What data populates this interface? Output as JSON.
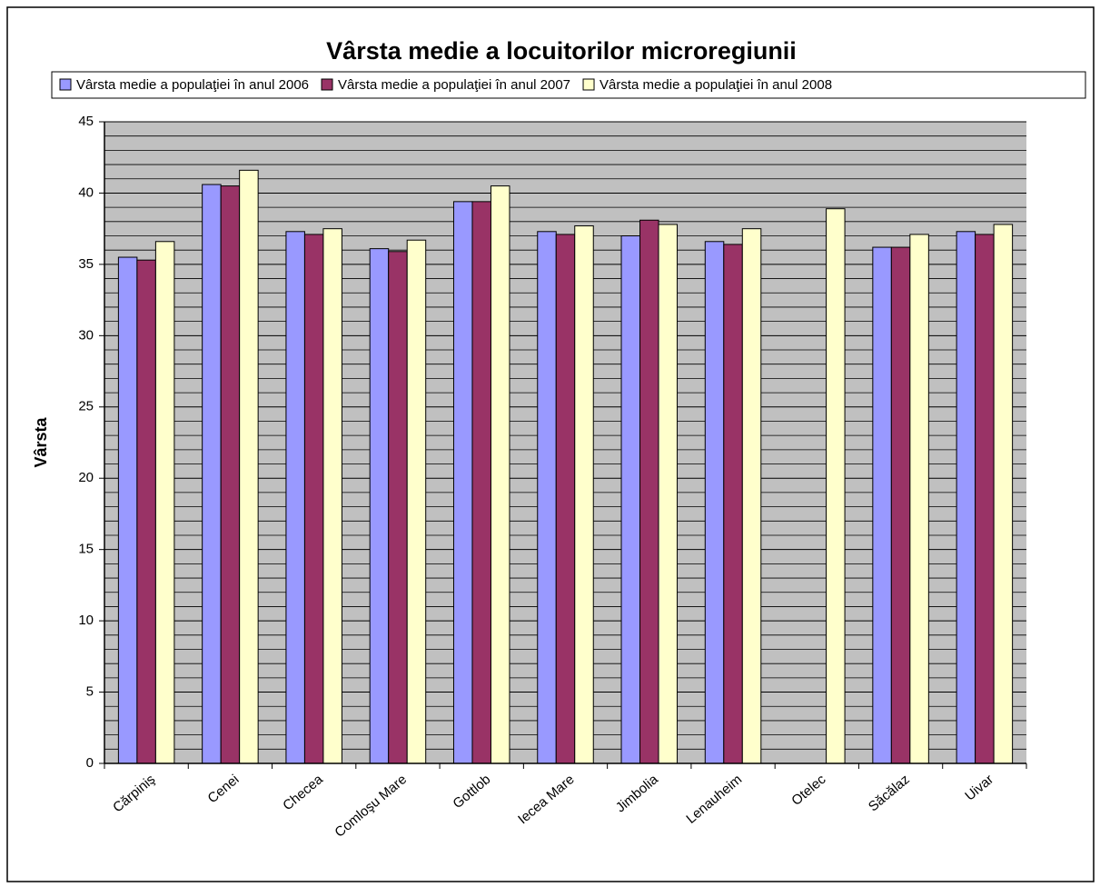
{
  "chart_data": {
    "type": "bar",
    "title": "Vârsta medie a locuitorilor microregiunii",
    "y_label": "Vârsta",
    "categories": [
      "Cărpiniş",
      "Cenei",
      "Checea",
      "Comloşu Mare",
      "Gottlob",
      "Iecea Mare",
      "Jimbolia",
      "Lenauheim",
      "Otelec",
      "Săcălaz",
      "Uivar"
    ],
    "series": [
      {
        "name": "Vârsta medie a populaţiei în anul 2006",
        "color": "#9999ff",
        "values": [
          35.5,
          40.6,
          37.3,
          36.1,
          39.4,
          37.3,
          37.0,
          36.6,
          null,
          36.2,
          37.3
        ]
      },
      {
        "name": "Vârsta medie a populaţiei în anul 2007",
        "color": "#993366",
        "values": [
          35.3,
          40.5,
          37.1,
          35.9,
          39.4,
          37.1,
          38.1,
          36.4,
          null,
          36.2,
          37.1
        ]
      },
      {
        "name": "Vârsta medie a populaţiei în anul 2008",
        "color": "#ffffcc",
        "values": [
          36.6,
          41.6,
          37.5,
          36.7,
          40.5,
          37.7,
          37.8,
          37.5,
          38.9,
          37.1,
          37.8
        ]
      }
    ],
    "ylim": [
      0,
      45
    ],
    "yticks": [
      0,
      5,
      10,
      15,
      20,
      25,
      30,
      35,
      40,
      45
    ],
    "grid": true,
    "grid_minor_divisions": 5,
    "plot_background": "#c0c0c0",
    "legend": "top"
  }
}
